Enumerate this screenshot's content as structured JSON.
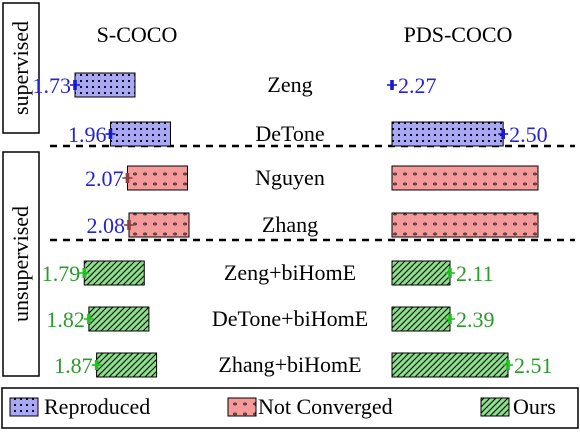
{
  "chart_data": {
    "type": "bar",
    "orientation": "horizontal",
    "panels": [
      "S-COCO",
      "PDS-COCO"
    ],
    "groups": [
      {
        "label": "supervised",
        "methods": [
          "Zeng",
          "DeTone"
        ]
      },
      {
        "label": "unsupervised",
        "methods": [
          "Nguyen",
          "Zhang",
          "Zeng+biHomE",
          "DeTone+biHomE",
          "Zhang+biHomE"
        ]
      }
    ],
    "rows": [
      {
        "method": "Zeng",
        "category": "reproduced",
        "s_coco": 1.73,
        "s_coco_label": "1.73",
        "pds_coco": 2.27,
        "pds_coco_label": "2.27"
      },
      {
        "method": "DeTone",
        "category": "reproduced",
        "s_coco": 1.96,
        "s_coco_label": "1.96",
        "pds_coco": 2.5,
        "pds_coco_label": "2.50"
      },
      {
        "method": "Nguyen",
        "category": "not_converged",
        "s_coco": 2.07,
        "s_coco_label": "2.07",
        "pds_coco": null,
        "pds_coco_label": ""
      },
      {
        "method": "Zhang",
        "category": "not_converged",
        "s_coco": 2.08,
        "s_coco_label": "2.08",
        "pds_coco": null,
        "pds_coco_label": ""
      },
      {
        "method": "Zeng+biHomE",
        "category": "ours",
        "s_coco": 1.79,
        "s_coco_label": "1.79",
        "pds_coco": 2.11,
        "pds_coco_label": "2.11"
      },
      {
        "method": "DeTone+biHomE",
        "category": "ours",
        "s_coco": 1.82,
        "s_coco_label": "1.82",
        "pds_coco": 2.39,
        "pds_coco_label": "2.39"
      },
      {
        "method": "Zhang+biHomE",
        "category": "ours",
        "s_coco": 1.87,
        "s_coco_label": "1.87",
        "pds_coco": 2.51,
        "pds_coco_label": "2.51"
      }
    ],
    "legend": [
      {
        "key": "reproduced",
        "label": "Reproduced"
      },
      {
        "key": "not_converged",
        "label": "Not Converged"
      },
      {
        "key": "ours",
        "label": "Ours"
      }
    ],
    "legend_position": "bottom",
    "colors": {
      "reproduced_fill": "#a8a8f5",
      "reproduced_text": "#2323d6",
      "not_converged_fill": "#f59a9a",
      "ours_fill": "#8ce08c",
      "ours_text": "#2a9a2a",
      "error_reproduced": "#1a1ad0",
      "error_not_converged": "#8a4040",
      "error_ours": "#22c022"
    }
  }
}
